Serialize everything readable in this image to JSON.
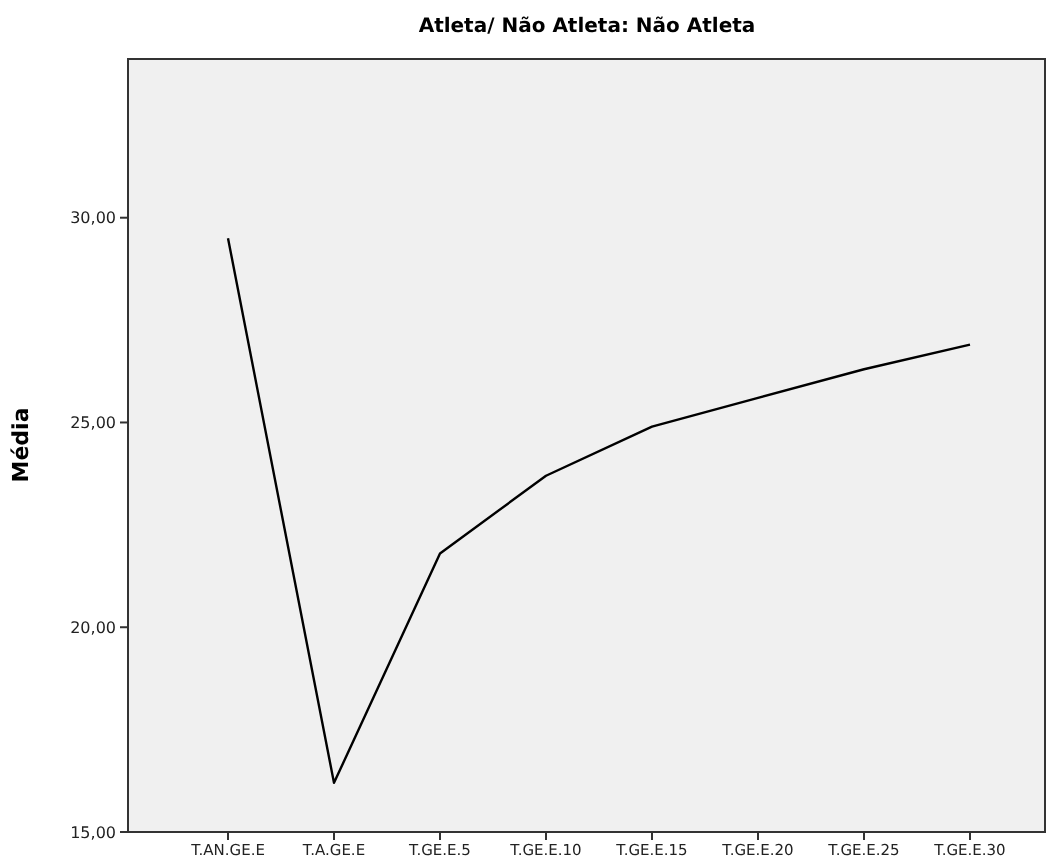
{
  "chart_data": {
    "type": "line",
    "title": "Atleta/ Não Atleta: Não Atleta",
    "ylabel": "Média",
    "categories": [
      "T.AN.GE.E",
      "T.A.GE.E",
      "T.GE.E.5",
      "T.GE.E.10",
      "T.GE.E.15",
      "T.GE.E.20",
      "T.GE.E.25",
      "T.GE.E.30"
    ],
    "values": [
      29.5,
      16.2,
      21.8,
      23.7,
      24.9,
      25.6,
      26.3,
      26.9
    ],
    "color": "#000000",
    "ylim": [
      15,
      33.9
    ],
    "yticks": [
      {
        "value": 15,
        "label": "15,00"
      },
      {
        "value": 20,
        "label": "20,00"
      },
      {
        "value": 25,
        "label": "25,00"
      },
      {
        "value": 30,
        "label": "30,00"
      }
    ],
    "grid": false,
    "marker": "none",
    "line_style": "solid"
  }
}
